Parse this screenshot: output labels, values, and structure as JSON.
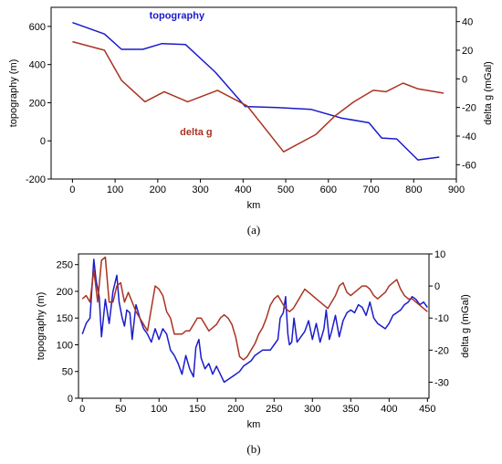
{
  "chart_data": [
    {
      "type": "line",
      "caption": "(a)",
      "xlabel": "km",
      "ylabel_left": "topography (m)",
      "ylabel_right": "delta g (mGal)",
      "xlim": [
        -50,
        900
      ],
      "ylim_left": [
        -200,
        700
      ],
      "ylim_right": [
        -70,
        50
      ],
      "xticks": [
        0,
        100,
        200,
        300,
        400,
        500,
        600,
        700,
        800,
        900
      ],
      "yticks_left": [
        -200,
        0,
        200,
        400,
        600
      ],
      "yticks_right": [
        -60,
        -40,
        -20,
        0,
        20,
        40
      ],
      "series": [
        {
          "name": "topography",
          "axis": "left",
          "color": "#1a1acc",
          "x": [
            0,
            75,
            115,
            165,
            210,
            265,
            335,
            405,
            480,
            560,
            630,
            695,
            725,
            760,
            810,
            860
          ],
          "y": [
            620,
            560,
            480,
            480,
            510,
            505,
            360,
            180,
            175,
            165,
            120,
            95,
            15,
            10,
            -100,
            -85
          ]
        },
        {
          "name": "delta g",
          "axis": "right",
          "color": "#aa3322",
          "x": [
            0,
            75,
            115,
            170,
            215,
            270,
            340,
            410,
            495,
            570,
            615,
            660,
            705,
            735,
            775,
            810,
            870
          ],
          "y": [
            26,
            20,
            -1,
            -16,
            -9,
            -16,
            -8,
            -19,
            -51,
            -39,
            -26,
            -16,
            -8,
            -9,
            -3,
            -7,
            -10
          ]
        }
      ],
      "annotations": [
        {
          "text": "topography",
          "color": "#1a1acc",
          "x": 245,
          "y": 640,
          "axis": "left"
        },
        {
          "text": "delta g",
          "color": "#aa3322",
          "x": 290,
          "y": 30,
          "axis": "left"
        }
      ]
    },
    {
      "type": "line",
      "caption": "(b)",
      "xlabel": "km",
      "ylabel_left": "topography (m)",
      "ylabel_right": "delta g (mGal)",
      "xlim": [
        -5,
        452
      ],
      "ylim_left": [
        0,
        270
      ],
      "ylim_right": [
        -35,
        10
      ],
      "xticks": [
        0,
        50,
        100,
        150,
        200,
        250,
        300,
        350,
        400,
        450
      ],
      "yticks_left": [
        0,
        50,
        100,
        150,
        200,
        250
      ],
      "yticks_right": [
        -30,
        -20,
        -10,
        0,
        10
      ],
      "series": [
        {
          "name": "",
          "axis": "left",
          "color": "#1c1ccc",
          "x": [
            0,
            5,
            10,
            15,
            18,
            22,
            25,
            30,
            35,
            40,
            45,
            48,
            52,
            55,
            58,
            62,
            65,
            70,
            75,
            80,
            85,
            90,
            95,
            100,
            105,
            110,
            115,
            120,
            125,
            130,
            135,
            140,
            145,
            148,
            152,
            155,
            160,
            165,
            170,
            175,
            180,
            185,
            190,
            195,
            200,
            205,
            210,
            215,
            220,
            225,
            230,
            235,
            240,
            245,
            250,
            255,
            258,
            262,
            265,
            268,
            270,
            273,
            276,
            280,
            285,
            290,
            295,
            300,
            305,
            310,
            315,
            318,
            322,
            325,
            330,
            335,
            340,
            345,
            350,
            355,
            360,
            365,
            370,
            375,
            380,
            385,
            390,
            395,
            400,
            405,
            410,
            415,
            420,
            425,
            430,
            435,
            440,
            445,
            450
          ],
          "y": [
            120,
            140,
            150,
            260,
            220,
            190,
            115,
            185,
            140,
            200,
            230,
            180,
            150,
            135,
            165,
            160,
            110,
            175,
            150,
            130,
            120,
            105,
            130,
            110,
            130,
            120,
            90,
            80,
            65,
            45,
            80,
            55,
            40,
            95,
            110,
            75,
            55,
            65,
            45,
            60,
            45,
            30,
            35,
            40,
            45,
            50,
            60,
            65,
            70,
            80,
            85,
            90,
            90,
            90,
            100,
            110,
            150,
            160,
            190,
            120,
            100,
            105,
            150,
            105,
            115,
            125,
            145,
            110,
            140,
            105,
            130,
            165,
            110,
            125,
            155,
            115,
            145,
            160,
            165,
            160,
            175,
            170,
            155,
            180,
            150,
            140,
            135,
            130,
            140,
            155,
            160,
            165,
            175,
            180,
            190,
            185,
            175,
            180,
            170
          ]
        },
        {
          "name": "",
          "axis": "right",
          "color": "#aa3322",
          "x": [
            0,
            5,
            10,
            15,
            20,
            25,
            30,
            35,
            40,
            45,
            50,
            55,
            60,
            65,
            70,
            75,
            80,
            85,
            90,
            95,
            100,
            105,
            110,
            115,
            120,
            125,
            130,
            135,
            140,
            145,
            150,
            155,
            160,
            165,
            170,
            175,
            180,
            185,
            190,
            195,
            200,
            205,
            210,
            215,
            220,
            225,
            230,
            235,
            240,
            245,
            250,
            255,
            260,
            265,
            270,
            275,
            280,
            285,
            290,
            295,
            300,
            305,
            310,
            315,
            320,
            325,
            330,
            335,
            340,
            345,
            350,
            355,
            360,
            365,
            370,
            375,
            380,
            385,
            390,
            395,
            400,
            405,
            410,
            415,
            420,
            425,
            430,
            435,
            440,
            445,
            450
          ],
          "y": [
            -4,
            -3,
            -5,
            5,
            -5,
            8,
            9,
            -5,
            -5,
            0,
            1,
            -5,
            -2,
            -5,
            -8,
            -10,
            -12,
            -14,
            -7,
            0,
            -1,
            -3,
            -8,
            -10,
            -15,
            -15,
            -15,
            -14,
            -14,
            -12,
            -10,
            -10,
            -12,
            -14,
            -13,
            -12,
            -10,
            -9,
            -10,
            -12,
            -16,
            -22,
            -23,
            -22,
            -20,
            -18,
            -15,
            -13,
            -10,
            -6,
            -4,
            -3,
            -5,
            -7,
            -8,
            -7,
            -5,
            -3,
            -1,
            -2,
            -3,
            -4,
            -5,
            -6,
            -7,
            -5,
            -3,
            0,
            1,
            -2,
            -3,
            -2,
            -1,
            0,
            0,
            -1,
            -3,
            -4,
            -3,
            -2,
            0,
            1,
            2,
            -1,
            -3,
            -4,
            -4,
            -5,
            -6,
            -7,
            -8
          ]
        }
      ]
    }
  ]
}
